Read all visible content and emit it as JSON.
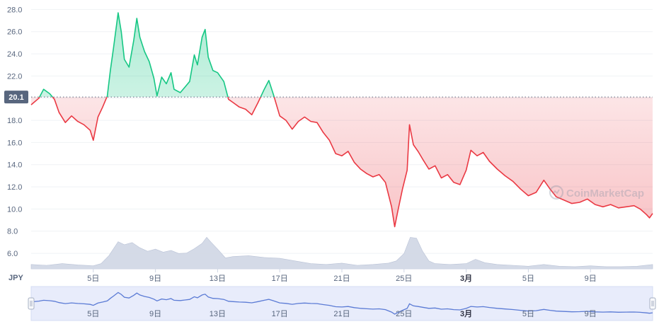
{
  "currency_label": "JPY",
  "watermark_text": "CoinMarketCap",
  "colors": {
    "up": "#16c784",
    "down": "#ea3943",
    "volume": "#cfd6e4",
    "navigator_line": "#5b7bd5",
    "navigator_fill": "#e8ecfb",
    "grid": "#eff2f5",
    "current_badge": "#58667e"
  },
  "chart_data": {
    "type": "line",
    "title": "",
    "xlabel": "",
    "ylabel": "",
    "currency": "JPY",
    "ylim": [
      4.6,
      28.6
    ],
    "yticks": [
      6.0,
      8.0,
      10.0,
      12.0,
      14.0,
      16.0,
      18.0,
      20.0,
      22.0,
      24.0,
      26.0,
      28.0
    ],
    "ytick_labels": [
      "6.0",
      "8.0",
      "10.0",
      "12.0",
      "14.0",
      "16.0",
      "18.0",
      "20.0",
      "22.0",
      "24.0",
      "26.0",
      "28.0"
    ],
    "xlim": [
      0,
      40
    ],
    "xticks": [
      {
        "label": "5日",
        "day": 4,
        "bold": false
      },
      {
        "label": "9日",
        "day": 8,
        "bold": false
      },
      {
        "label": "13日",
        "day": 12,
        "bold": false
      },
      {
        "label": "17日",
        "day": 16,
        "bold": false
      },
      {
        "label": "21日",
        "day": 20,
        "bold": false
      },
      {
        "label": "25日",
        "day": 24,
        "bold": false
      },
      {
        "label": "3月",
        "day": 28,
        "bold": true
      },
      {
        "label": "5日",
        "day": 32,
        "bold": false
      },
      {
        "label": "9日",
        "day": 36,
        "bold": false
      }
    ],
    "reference_price": 20.1,
    "current_price_label": "20.1",
    "series": [
      {
        "kind": "price",
        "points": [
          [
            0.0,
            19.4
          ],
          [
            0.5,
            20.0
          ],
          [
            0.8,
            20.8
          ],
          [
            1.2,
            20.4
          ],
          [
            1.5,
            19.9
          ],
          [
            1.8,
            18.7
          ],
          [
            2.2,
            17.8
          ],
          [
            2.6,
            18.4
          ],
          [
            3.0,
            17.9
          ],
          [
            3.4,
            17.6
          ],
          [
            3.8,
            17.1
          ],
          [
            4.0,
            16.2
          ],
          [
            4.3,
            18.3
          ],
          [
            4.6,
            19.2
          ],
          [
            4.9,
            20.2
          ],
          [
            5.1,
            22.5
          ],
          [
            5.3,
            24.5
          ],
          [
            5.6,
            27.7
          ],
          [
            5.8,
            26.0
          ],
          [
            6.0,
            23.5
          ],
          [
            6.3,
            22.8
          ],
          [
            6.6,
            25.2
          ],
          [
            6.8,
            27.2
          ],
          [
            7.0,
            25.5
          ],
          [
            7.3,
            24.2
          ],
          [
            7.6,
            23.3
          ],
          [
            7.9,
            21.8
          ],
          [
            8.1,
            20.2
          ],
          [
            8.4,
            21.9
          ],
          [
            8.7,
            21.3
          ],
          [
            9.0,
            22.3
          ],
          [
            9.2,
            20.8
          ],
          [
            9.6,
            20.5
          ],
          [
            9.9,
            21.0
          ],
          [
            10.2,
            21.5
          ],
          [
            10.5,
            23.9
          ],
          [
            10.7,
            23.0
          ],
          [
            11.0,
            25.5
          ],
          [
            11.2,
            26.2
          ],
          [
            11.4,
            23.7
          ],
          [
            11.7,
            22.5
          ],
          [
            12.0,
            22.3
          ],
          [
            12.4,
            21.5
          ],
          [
            12.7,
            19.9
          ],
          [
            13.0,
            19.6
          ],
          [
            13.4,
            19.2
          ],
          [
            13.8,
            19.0
          ],
          [
            14.2,
            18.5
          ],
          [
            14.6,
            19.6
          ],
          [
            15.0,
            20.8
          ],
          [
            15.3,
            21.6
          ],
          [
            15.6,
            20.3
          ],
          [
            16.0,
            18.4
          ],
          [
            16.4,
            18.0
          ],
          [
            16.8,
            17.2
          ],
          [
            17.2,
            17.9
          ],
          [
            17.6,
            18.3
          ],
          [
            18.0,
            17.9
          ],
          [
            18.4,
            17.8
          ],
          [
            18.8,
            16.9
          ],
          [
            19.2,
            16.2
          ],
          [
            19.6,
            15.0
          ],
          [
            20.0,
            14.8
          ],
          [
            20.4,
            15.2
          ],
          [
            20.8,
            14.2
          ],
          [
            21.2,
            13.6
          ],
          [
            21.6,
            13.2
          ],
          [
            22.0,
            12.9
          ],
          [
            22.4,
            13.1
          ],
          [
            22.8,
            12.4
          ],
          [
            23.2,
            10.2
          ],
          [
            23.4,
            8.4
          ],
          [
            23.6,
            9.8
          ],
          [
            23.9,
            11.8
          ],
          [
            24.2,
            13.5
          ],
          [
            24.35,
            17.6
          ],
          [
            24.6,
            15.8
          ],
          [
            24.9,
            15.2
          ],
          [
            25.2,
            14.5
          ],
          [
            25.6,
            13.6
          ],
          [
            26.0,
            13.9
          ],
          [
            26.4,
            12.8
          ],
          [
            26.8,
            13.1
          ],
          [
            27.2,
            12.4
          ],
          [
            27.6,
            12.2
          ],
          [
            28.0,
            13.5
          ],
          [
            28.3,
            15.3
          ],
          [
            28.7,
            14.8
          ],
          [
            29.1,
            15.1
          ],
          [
            29.5,
            14.3
          ],
          [
            30.0,
            13.6
          ],
          [
            30.5,
            13.0
          ],
          [
            31.0,
            12.5
          ],
          [
            31.5,
            11.8
          ],
          [
            32.0,
            11.2
          ],
          [
            32.5,
            11.5
          ],
          [
            33.0,
            12.6
          ],
          [
            33.4,
            11.8
          ],
          [
            33.8,
            11.1
          ],
          [
            34.3,
            10.8
          ],
          [
            34.8,
            10.5
          ],
          [
            35.3,
            10.6
          ],
          [
            35.8,
            10.9
          ],
          [
            36.3,
            10.4
          ],
          [
            36.8,
            10.2
          ],
          [
            37.3,
            10.4
          ],
          [
            37.8,
            10.1
          ],
          [
            38.3,
            10.2
          ],
          [
            38.8,
            10.3
          ],
          [
            39.2,
            10.0
          ],
          [
            39.6,
            9.5
          ],
          [
            39.8,
            9.2
          ],
          [
            40.0,
            9.6
          ]
        ]
      },
      {
        "kind": "volume",
        "points": [
          [
            0.0,
            0.1
          ],
          [
            1.0,
            0.08
          ],
          [
            2.0,
            0.12
          ],
          [
            3.0,
            0.09
          ],
          [
            4.0,
            0.07
          ],
          [
            4.5,
            0.12
          ],
          [
            5.0,
            0.3
          ],
          [
            5.6,
            0.62
          ],
          [
            6.0,
            0.55
          ],
          [
            6.5,
            0.6
          ],
          [
            7.0,
            0.48
          ],
          [
            7.5,
            0.4
          ],
          [
            8.0,
            0.45
          ],
          [
            8.5,
            0.38
          ],
          [
            9.0,
            0.42
          ],
          [
            9.5,
            0.35
          ],
          [
            10.0,
            0.36
          ],
          [
            10.5,
            0.46
          ],
          [
            11.0,
            0.58
          ],
          [
            11.3,
            0.72
          ],
          [
            11.6,
            0.6
          ],
          [
            12.0,
            0.45
          ],
          [
            12.5,
            0.25
          ],
          [
            13.0,
            0.28
          ],
          [
            14.0,
            0.3
          ],
          [
            15.0,
            0.26
          ],
          [
            16.0,
            0.24
          ],
          [
            17.0,
            0.18
          ],
          [
            18.0,
            0.12
          ],
          [
            19.0,
            0.1
          ],
          [
            20.0,
            0.13
          ],
          [
            21.0,
            0.08
          ],
          [
            22.0,
            0.1
          ],
          [
            23.0,
            0.13
          ],
          [
            23.5,
            0.18
          ],
          [
            24.0,
            0.35
          ],
          [
            24.4,
            0.72
          ],
          [
            24.8,
            0.7
          ],
          [
            25.2,
            0.4
          ],
          [
            25.6,
            0.18
          ],
          [
            26.0,
            0.12
          ],
          [
            27.0,
            0.1
          ],
          [
            28.0,
            0.12
          ],
          [
            28.6,
            0.22
          ],
          [
            29.2,
            0.14
          ],
          [
            30.0,
            0.1
          ],
          [
            31.0,
            0.08
          ],
          [
            32.0,
            0.06
          ],
          [
            33.0,
            0.1
          ],
          [
            34.0,
            0.06
          ],
          [
            35.0,
            0.05
          ],
          [
            36.0,
            0.07
          ],
          [
            37.0,
            0.05
          ],
          [
            38.0,
            0.05
          ],
          [
            39.0,
            0.06
          ],
          [
            40.0,
            0.1
          ]
        ]
      }
    ],
    "grid": true,
    "legend": "none"
  }
}
